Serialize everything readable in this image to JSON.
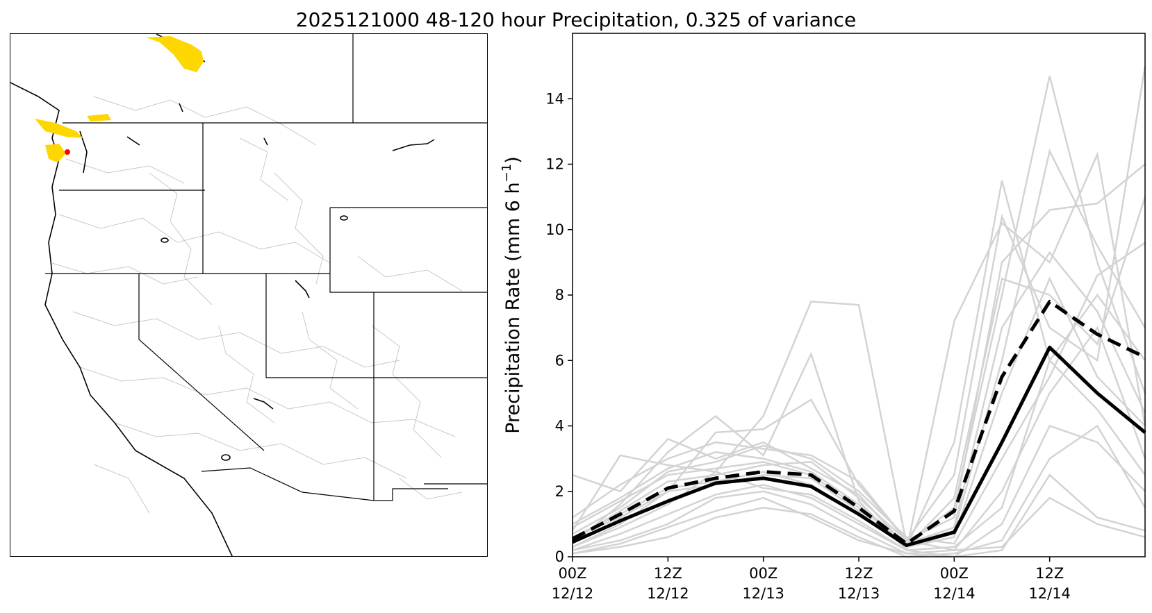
{
  "title": "2025121000 48-120 hour Precipitation, 0.325 of variance",
  "map": {
    "colors": {
      "highlight": "#ffd700",
      "peak": "#ff0000",
      "boundary": "#000000",
      "basin": "#c0c0c0"
    }
  },
  "chart_data": {
    "type": "line",
    "xlabel": "",
    "ylabel": "Precipitation Rate (mm 6 h",
    "ylabel_sup": "−1",
    "ylabel_close": ")",
    "x": [
      0,
      6,
      12,
      18,
      24,
      30,
      36,
      42,
      48,
      54,
      60,
      66,
      72
    ],
    "xlim": [
      0,
      72
    ],
    "ylim": [
      0,
      16
    ],
    "xticks": [
      {
        "x": 0,
        "line1": "00Z",
        "line2": "12/12"
      },
      {
        "x": 12,
        "line1": "12Z",
        "line2": "12/12"
      },
      {
        "x": 24,
        "line1": "00Z",
        "line2": "12/13"
      },
      {
        "x": 36,
        "line1": "12Z",
        "line2": "12/13"
      },
      {
        "x": 48,
        "line1": "00Z",
        "line2": "12/14"
      },
      {
        "x": 60,
        "line1": "12Z",
        "line2": "12/14"
      }
    ],
    "yticks": [
      "0",
      "2",
      "4",
      "6",
      "8",
      "10",
      "12",
      "14"
    ],
    "ytick_values": [
      0,
      2,
      4,
      6,
      8,
      10,
      12,
      14
    ],
    "colors": {
      "member": "#d3d3d3",
      "mean": "#000000"
    },
    "highlight_series": [
      {
        "style": "solid",
        "values": [
          0.45,
          1.1,
          1.7,
          2.25,
          2.4,
          2.15,
          1.3,
          0.35,
          0.75,
          3.5,
          6.4,
          5.0,
          3.8
        ]
      },
      {
        "style": "dashed",
        "values": [
          0.55,
          1.3,
          2.1,
          2.4,
          2.6,
          2.5,
          1.5,
          0.4,
          1.4,
          5.5,
          7.8,
          6.8,
          6.1
        ]
      }
    ],
    "ensemble_members": [
      [
        0.3,
        0.9,
        1.6,
        2.6,
        2.1,
        1.9,
        1.1,
        0.2,
        0.3,
        1.5,
        6.0,
        4.5,
        2.5
      ],
      [
        0.6,
        1.2,
        2.0,
        2.2,
        2.5,
        2.4,
        1.4,
        0.3,
        0.6,
        5.0,
        8.5,
        5.5,
        4.0
      ],
      [
        0.2,
        0.5,
        1.0,
        1.8,
        2.0,
        1.6,
        0.8,
        0.1,
        0.2,
        2.0,
        5.0,
        7.0,
        3.0
      ],
      [
        1.0,
        1.8,
        2.7,
        3.2,
        3.0,
        2.6,
        1.6,
        0.4,
        1.5,
        8.0,
        14.7,
        9.0,
        5.0
      ],
      [
        0.5,
        1.4,
        2.3,
        2.5,
        2.8,
        2.9,
        1.8,
        0.5,
        2.5,
        10.4,
        7.0,
        6.0,
        15.0
      ],
      [
        0.1,
        0.3,
        0.6,
        1.2,
        1.5,
        1.3,
        0.6,
        0.0,
        0.1,
        0.5,
        3.0,
        4.0,
        1.5
      ],
      [
        2.5,
        2.0,
        3.6,
        3.0,
        3.5,
        2.7,
        1.9,
        0.3,
        3.5,
        11.5,
        6.0,
        8.0,
        6.0
      ],
      [
        0.8,
        3.1,
        2.8,
        2.6,
        4.3,
        7.8,
        7.7,
        0.4,
        0.8,
        6.0,
        12.4,
        9.5,
        7.0
      ],
      [
        0.4,
        1.6,
        3.2,
        4.3,
        3.1,
        6.2,
        1.7,
        0.2,
        7.2,
        10.2,
        9.0,
        12.3,
        4.0
      ],
      [
        0.3,
        1.0,
        2.0,
        3.8,
        3.9,
        4.8,
        2.2,
        0.5,
        1.2,
        9.0,
        10.6,
        10.8,
        12.0
      ],
      [
        0.7,
        1.5,
        2.6,
        2.9,
        3.4,
        3.0,
        2.0,
        0.6,
        0.4,
        3.0,
        5.5,
        8.6,
        9.6
      ],
      [
        0.2,
        0.7,
        1.3,
        1.9,
        2.2,
        1.8,
        1.0,
        0.2,
        0.0,
        1.0,
        4.0,
        3.5,
        2.0
      ],
      [
        1.2,
        2.2,
        3.0,
        3.5,
        3.3,
        3.1,
        2.3,
        0.5,
        0.2,
        0.3,
        1.8,
        1.0,
        0.6
      ],
      [
        0.9,
        1.7,
        2.5,
        2.7,
        2.9,
        2.5,
        1.5,
        0.4,
        0.9,
        7.0,
        9.3,
        7.5,
        4.4
      ],
      [
        0.1,
        0.4,
        0.9,
        1.4,
        1.8,
        1.2,
        0.5,
        0.1,
        0.0,
        0.2,
        2.5,
        1.2,
        0.8
      ],
      [
        0.6,
        1.3,
        2.1,
        2.3,
        2.6,
        2.2,
        1.3,
        0.3,
        1.8,
        8.5,
        8.0,
        6.5,
        11.0
      ]
    ]
  }
}
